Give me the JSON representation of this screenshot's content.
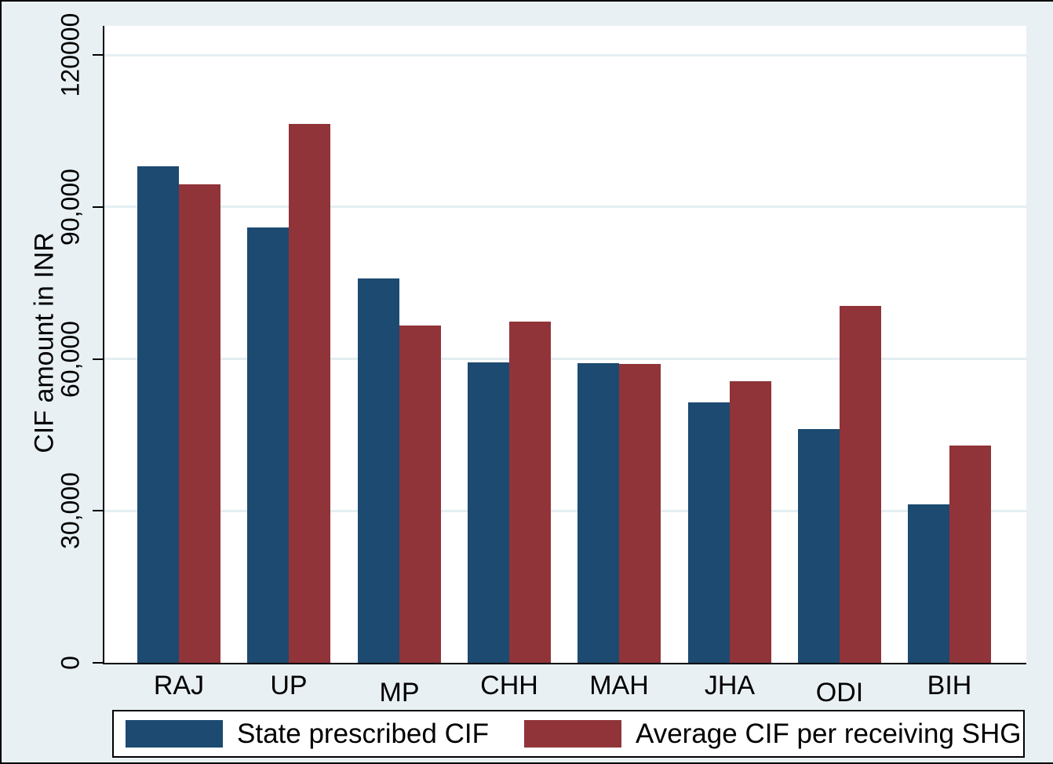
{
  "chart_data": {
    "type": "bar",
    "title": "",
    "xlabel": "",
    "ylabel": "CIF amount in INR",
    "categories": [
      "RAJ",
      "UP",
      "MP",
      "CHH",
      "MAH",
      "JHA",
      "ODI",
      "BIH"
    ],
    "series": [
      {
        "name": "State prescribed CIF",
        "color": "#1c4a70",
        "values": [
          98000,
          86000,
          75800,
          59300,
          59200,
          51400,
          46200,
          31300
        ]
      },
      {
        "name": "Average CIF per receiving SHG",
        "color": "#903439",
        "values": [
          94500,
          106400,
          66600,
          67400,
          59000,
          55600,
          70500,
          42900
        ]
      }
    ],
    "y_ticks": [
      {
        "value": 0,
        "label": "0"
      },
      {
        "value": 30000,
        "label": "30,000"
      },
      {
        "value": 60000,
        "label": "60,000"
      },
      {
        "value": 90000,
        "label": "90,000"
      },
      {
        "value": 120000,
        "label": "120000"
      }
    ],
    "ylim": [
      0,
      125700
    ],
    "grid": true,
    "legend_position": "bottom"
  },
  "colors": {
    "figure_background": "#e9f0f3",
    "plot_background": "#ffffff",
    "gridline": "#e4eef2",
    "axis": "#000000",
    "legend_background": "#ffffff",
    "series_blue": "#1c4a70",
    "series_red": "#903439"
  }
}
